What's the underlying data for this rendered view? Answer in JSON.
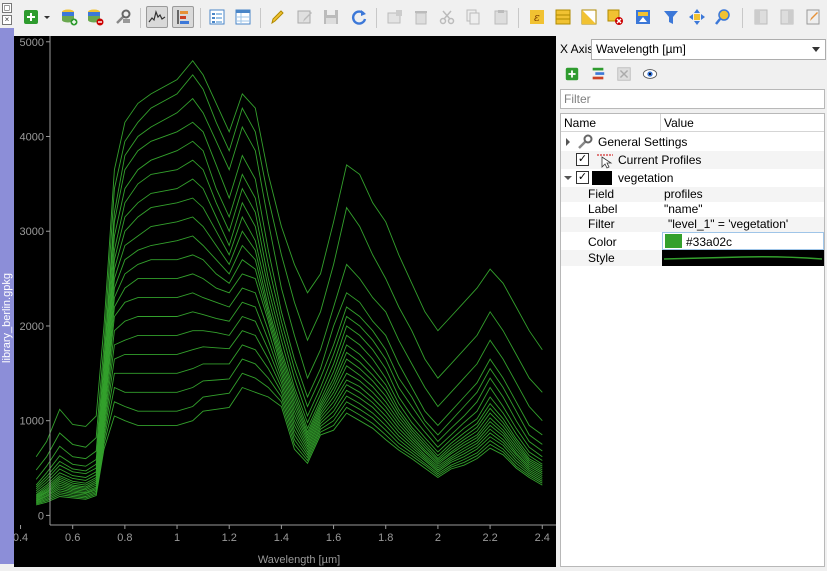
{
  "toolbar": {
    "buttons": [
      {
        "name": "add-profile-icon"
      },
      {
        "name": "dropdown-arrow-icon"
      },
      {
        "name": "add-source-icon"
      },
      {
        "name": "remove-source-icon"
      },
      {
        "name": "tools-icon"
      },
      {
        "name": "profile-view-icon"
      },
      {
        "name": "profile-tree-icon"
      },
      {
        "name": "attribute-form-icon"
      },
      {
        "name": "attribute-table-icon"
      },
      {
        "name": "edit-pencil-icon"
      },
      {
        "name": "multi-edit-icon"
      },
      {
        "name": "save-edits-icon"
      },
      {
        "name": "reload-icon"
      },
      {
        "name": "add-feature-icon"
      },
      {
        "name": "delete-feature-icon"
      },
      {
        "name": "cut-icon"
      },
      {
        "name": "copy-icon"
      },
      {
        "name": "paste-icon"
      },
      {
        "name": "expression-select-icon"
      },
      {
        "name": "select-all-icon"
      },
      {
        "name": "invert-selection-icon"
      },
      {
        "name": "deselect-icon"
      },
      {
        "name": "move-to-top-icon"
      },
      {
        "name": "filter-icon"
      },
      {
        "name": "pan-to-selection-icon"
      },
      {
        "name": "zoom-to-selection-icon"
      },
      {
        "name": "new-field-icon"
      },
      {
        "name": "delete-field-icon"
      },
      {
        "name": "field-calculator-icon"
      }
    ]
  },
  "dock": {
    "title": "library_berlin.gpkg",
    "float_glyph": "◻",
    "close_glyph": "×"
  },
  "plot": {
    "background": "#000000",
    "line_color": "#33a02c",
    "xlabel": "Wavelength [µm]",
    "ylabel": "",
    "xlim": [
      0.375,
      2.445
    ],
    "ylim": [
      -80,
      5040
    ],
    "xticks": [
      "0.4",
      "0.6",
      "0.8",
      "1",
      "1.2",
      "1.4",
      "1.6",
      "1.8",
      "2",
      "2.2",
      "2.4"
    ],
    "yticks": [
      "0",
      "1000",
      "2000",
      "3000",
      "4000",
      "5000"
    ]
  },
  "chart_data": {
    "type": "line",
    "title": "",
    "xlabel": "Wavelength [µm]",
    "ylabel": "",
    "xlim": [
      0.375,
      2.445
    ],
    "ylim": [
      -80,
      5040
    ],
    "grid": false,
    "x": [
      0.46,
      0.5,
      0.55,
      0.6,
      0.65,
      0.69,
      0.72,
      0.76,
      0.8,
      0.85,
      0.9,
      1.0,
      1.06,
      1.1,
      1.15,
      1.2,
      1.25,
      1.3,
      1.35,
      1.4,
      1.45,
      1.5,
      1.55,
      1.6,
      1.65,
      1.7,
      1.75,
      1.8,
      1.85,
      1.9,
      1.95,
      2.0,
      2.05,
      2.1,
      2.15,
      2.2,
      2.25,
      2.3,
      2.35,
      2.4
    ],
    "series": [
      {
        "values": [
          620,
          780,
          1120,
          960,
          940,
          1050,
          2000,
          3650,
          4150,
          4350,
          4450,
          4600,
          4800,
          4650,
          4350,
          4050,
          4450,
          4300,
          3600,
          3050,
          2650,
          2350,
          2550,
          3100,
          3700,
          3600,
          3300,
          3100,
          2750,
          2450,
          2150,
          1950,
          2100,
          2250,
          2400,
          2600,
          2450,
          2200,
          1950,
          1750
        ]
      },
      {
        "values": [
          480,
          620,
          870,
          750,
          720,
          820,
          1800,
          3450,
          3950,
          4150,
          4300,
          4450,
          4650,
          4500,
          4150,
          3850,
          4300,
          4050,
          3350,
          2750,
          2250,
          1850,
          2150,
          2650,
          3250,
          3050,
          2750,
          2500,
          2200,
          1950,
          1650,
          1450,
          1600,
          1750,
          1900,
          2150,
          1950,
          1700,
          1450,
          1300
        ]
      },
      {
        "values": [
          380,
          520,
          730,
          620,
          600,
          680,
          1650,
          3200,
          3800,
          4000,
          4100,
          4250,
          4400,
          4250,
          3950,
          3650,
          4100,
          3850,
          3100,
          2400,
          1900,
          1450,
          1750,
          2200,
          2650,
          2500,
          2300,
          2150,
          1850,
          1600,
          1350,
          1150,
          1300,
          1450,
          1600,
          1850,
          1650,
          1400,
          1150,
          1000
        ]
      },
      {
        "values": [
          320,
          450,
          630,
          540,
          520,
          590,
          1550,
          3100,
          3650,
          3850,
          3950,
          4050,
          4150,
          4050,
          3700,
          3350,
          3800,
          3550,
          2800,
          2150,
          1650,
          1250,
          1550,
          2000,
          2350,
          2250,
          2050,
          1900,
          1600,
          1350,
          1100,
          950,
          1100,
          1250,
          1400,
          1650,
          1450,
          1200,
          950,
          850
        ]
      },
      {
        "values": [
          300,
          410,
          570,
          490,
          470,
          540,
          1450,
          2950,
          3450,
          3650,
          3750,
          3850,
          3950,
          3850,
          3450,
          3150,
          3600,
          3350,
          2650,
          2050,
          1550,
          1150,
          1450,
          1800,
          2200,
          2100,
          1950,
          1750,
          1450,
          1250,
          1000,
          850,
          1000,
          1150,
          1300,
          1550,
          1350,
          1100,
          850,
          750
        ]
      },
      {
        "values": [
          280,
          380,
          530,
          460,
          440,
          500,
          1400,
          2800,
          3300,
          3500,
          3600,
          3650,
          3750,
          3650,
          3300,
          3000,
          3450,
          3200,
          2500,
          1950,
          1450,
          1050,
          1350,
          1700,
          2100,
          2000,
          1850,
          1650,
          1350,
          1150,
          950,
          780,
          920,
          1050,
          1200,
          1450,
          1250,
          1000,
          780,
          680
        ]
      },
      {
        "values": [
          260,
          350,
          490,
          420,
          400,
          460,
          1350,
          2700,
          3150,
          3300,
          3400,
          3450,
          3550,
          3450,
          3150,
          2850,
          3300,
          3050,
          2400,
          1850,
          1350,
          980,
          1280,
          1600,
          2000,
          1900,
          1750,
          1550,
          1250,
          1050,
          880,
          720,
          850,
          980,
          1100,
          1350,
          1150,
          920,
          720,
          620
        ]
      },
      {
        "values": [
          240,
          320,
          450,
          390,
          370,
          430,
          1300,
          2600,
          3000,
          3150,
          3250,
          3300,
          3350,
          3250,
          3000,
          2750,
          3150,
          2900,
          2300,
          1750,
          1300,
          920,
          1220,
          1520,
          1900,
          1800,
          1650,
          1450,
          1180,
          980,
          820,
          670,
          800,
          920,
          1020,
          1250,
          1080,
          860,
          670,
          580
        ]
      },
      {
        "values": [
          220,
          300,
          420,
          360,
          340,
          400,
          1250,
          2500,
          2850,
          2950,
          3050,
          3100,
          3150,
          3050,
          2850,
          2650,
          3000,
          2800,
          2200,
          1700,
          1250,
          880,
          1180,
          1450,
          1800,
          1700,
          1550,
          1380,
          1120,
          930,
          780,
          630,
          760,
          870,
          970,
          1180,
          1020,
          810,
          630,
          540
        ]
      },
      {
        "values": [
          210,
          280,
          400,
          340,
          320,
          380,
          1200,
          2400,
          2700,
          2800,
          2850,
          2900,
          2950,
          2850,
          2700,
          2550,
          2850,
          2700,
          2150,
          1650,
          1200,
          850,
          1150,
          1400,
          1720,
          1620,
          1480,
          1320,
          1080,
          900,
          750,
          600,
          730,
          830,
          930,
          1130,
          980,
          780,
          600,
          520
        ]
      },
      {
        "values": [
          200,
          265,
          380,
          320,
          300,
          360,
          1150,
          2300,
          2550,
          2650,
          2700,
          2700,
          2750,
          2700,
          2550,
          2450,
          2700,
          2600,
          2100,
          1600,
          1150,
          820,
          1120,
          1350,
          1650,
          1550,
          1420,
          1260,
          1040,
          870,
          720,
          580,
          700,
          800,
          890,
          1080,
          940,
          750,
          580,
          500
        ]
      },
      {
        "values": [
          190,
          250,
          360,
          305,
          285,
          340,
          1100,
          2200,
          2400,
          2500,
          2500,
          2500,
          2550,
          2500,
          2400,
          2350,
          2550,
          2500,
          2050,
          1550,
          1100,
          790,
          1090,
          1300,
          1580,
          1480,
          1360,
          1200,
          1000,
          840,
          690,
          560,
          670,
          770,
          850,
          1030,
          900,
          720,
          560,
          480
        ]
      },
      {
        "values": [
          180,
          240,
          340,
          290,
          270,
          320,
          1050,
          2100,
          2250,
          2300,
          2300,
          2300,
          2350,
          2300,
          2250,
          2200,
          2400,
          2350,
          1950,
          1500,
          1050,
          760,
          1060,
          1250,
          1500,
          1420,
          1300,
          1150,
          960,
          810,
          670,
          540,
          650,
          740,
          820,
          990,
          870,
          690,
          540,
          460
        ]
      },
      {
        "values": [
          170,
          225,
          320,
          275,
          255,
          300,
          1000,
          1950,
          2050,
          2100,
          2100,
          2100,
          2150,
          2120,
          2080,
          2050,
          2250,
          2200,
          1850,
          1450,
          1000,
          730,
          1030,
          1200,
          1430,
          1360,
          1240,
          1100,
          920,
          780,
          640,
          520,
          620,
          710,
          790,
          950,
          840,
          660,
          520,
          440
        ]
      },
      {
        "values": [
          160,
          210,
          300,
          260,
          240,
          285,
          950,
          1800,
          1850,
          1900,
          1900,
          1900,
          1950,
          1950,
          1930,
          1900,
          2100,
          2050,
          1750,
          1400,
          950,
          700,
          1000,
          1150,
          1380,
          1300,
          1190,
          1050,
          880,
          750,
          620,
          500,
          600,
          680,
          760,
          910,
          800,
          640,
          500,
          420
        ]
      },
      {
        "values": [
          150,
          200,
          280,
          245,
          230,
          270,
          900,
          1650,
          1700,
          1700,
          1700,
          1700,
          1750,
          1780,
          1770,
          1760,
          1950,
          1900,
          1650,
          1350,
          900,
          670,
          970,
          1100,
          1320,
          1240,
          1140,
          1000,
          840,
          720,
          600,
          480,
          580,
          650,
          730,
          870,
          770,
          610,
          480,
          400
        ]
      },
      {
        "values": [
          140,
          185,
          260,
          230,
          215,
          255,
          850,
          1500,
          1500,
          1500,
          1500,
          1500,
          1550,
          1600,
          1600,
          1600,
          1800,
          1750,
          1550,
          1300,
          850,
          640,
          940,
          1050,
          1260,
          1180,
          1080,
          950,
          800,
          690,
          580,
          460,
          560,
          620,
          700,
          830,
          740,
          580,
          460,
          380
        ]
      },
      {
        "values": [
          130,
          170,
          240,
          215,
          200,
          240,
          800,
          1350,
          1300,
          1300,
          1300,
          1300,
          1350,
          1420,
          1430,
          1440,
          1650,
          1600,
          1450,
          1250,
          800,
          610,
          910,
          1000,
          1200,
          1120,
          1030,
          900,
          760,
          660,
          550,
          440,
          530,
          590,
          660,
          790,
          700,
          550,
          440,
          360
        ]
      },
      {
        "values": [
          120,
          155,
          220,
          200,
          185,
          225,
          750,
          1200,
          1150,
          1100,
          1100,
          1100,
          1150,
          1250,
          1270,
          1290,
          1500,
          1450,
          1350,
          1200,
          750,
          580,
          880,
          950,
          1140,
          1060,
          970,
          850,
          720,
          630,
          530,
          420,
          510,
          560,
          630,
          750,
          670,
          520,
          420,
          340
        ]
      },
      {
        "values": [
          110,
          140,
          200,
          185,
          170,
          210,
          700,
          1050,
          1000,
          950,
          950,
          950,
          1000,
          1100,
          1120,
          1140,
          1350,
          1300,
          1250,
          1150,
          700,
          550,
          850,
          900,
          1080,
          1000,
          920,
          800,
          690,
          600,
          500,
          400,
          490,
          530,
          600,
          710,
          640,
          500,
          400,
          320
        ]
      }
    ]
  },
  "panel": {
    "xaxis_label": "X Axis",
    "xaxis_value": "Wavelength [µm]",
    "buttons": [
      {
        "name": "add-visualization-icon"
      },
      {
        "name": "layer-list-icon"
      },
      {
        "name": "remove-visualization-icon"
      },
      {
        "name": "visibility-eye-icon"
      }
    ],
    "filter_placeholder": "Filter",
    "tree_header": {
      "name": "Name",
      "value": "Value"
    },
    "tree": {
      "general": {
        "name": "General Settings"
      },
      "current": {
        "name": "Current Profiles"
      },
      "vegetation": {
        "name": "vegetation"
      },
      "props": [
        {
          "name": "Field",
          "value": "profiles"
        },
        {
          "name": "Label",
          "value": "\"name\""
        },
        {
          "name": "Filter",
          "value": "\"level_1\" = 'vegetation'"
        },
        {
          "name": "Color",
          "value": "#33a02c"
        },
        {
          "name": "Style",
          "value": ""
        }
      ],
      "color_hex": "#33a02c",
      "check_glyph": "✓"
    }
  }
}
